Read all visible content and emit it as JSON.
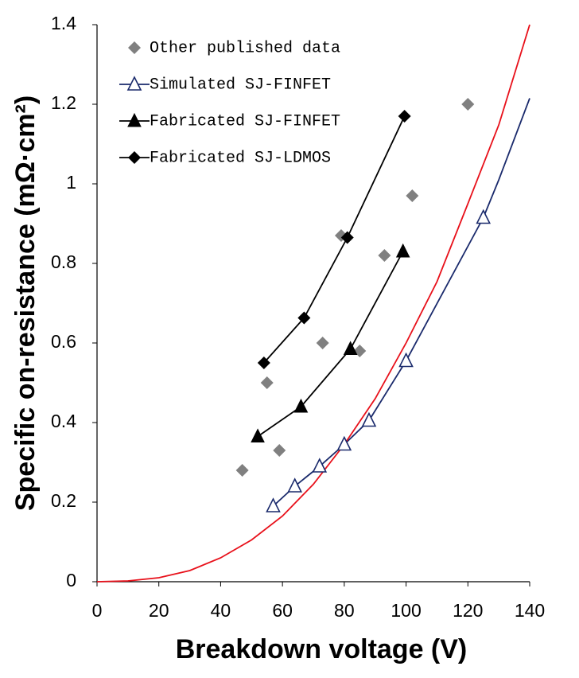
{
  "chart_data": {
    "type": "scatter",
    "x_label": "Breakdown voltage (V)",
    "y_label": "Specific on-resistance (mΩ·cm²)",
    "xlim": [
      0,
      140
    ],
    "xticks": [
      0,
      20,
      40,
      60,
      80,
      100,
      120,
      140
    ],
    "ylim": [
      0,
      1.4
    ],
    "yticks": [
      0,
      0.2,
      0.4,
      0.6,
      0.8,
      1,
      1.2,
      1.4
    ],
    "grid": false,
    "legend_position": "upper-left",
    "series": [
      {
        "name": "Other published data",
        "color": "#808080",
        "marker": "diamond",
        "line": false,
        "x": [
          47,
          55,
          59,
          73,
          79,
          85,
          93,
          102,
          120
        ],
        "values": [
          0.28,
          0.5,
          0.33,
          0.6,
          0.87,
          0.58,
          0.82,
          0.97,
          1.2
        ]
      },
      {
        "name": "Simulated SJ-FINFET",
        "color": "#1a2a6c",
        "marker": "triangle-open",
        "line": true,
        "x": [
          57,
          64,
          72,
          80,
          88,
          100,
          125
        ],
        "values": [
          0.19,
          0.24,
          0.29,
          0.345,
          0.405,
          0.555,
          0.915
        ]
      },
      {
        "name": "Fabricated SJ-FINFET",
        "color": "#000000",
        "marker": "triangle",
        "line": true,
        "x": [
          52,
          66,
          82,
          99
        ],
        "values": [
          0.365,
          0.44,
          0.585,
          0.83
        ]
      },
      {
        "name": "Fabricated SJ-LDMOS",
        "color": "#000000",
        "marker": "diamond",
        "line": true,
        "x": [
          54,
          67,
          81,
          99.5
        ],
        "values": [
          0.55,
          0.663,
          0.865,
          1.17
        ]
      },
      {
        "color": "#1a2a6c",
        "marker": "none",
        "line": true,
        "x": [
          125,
          130,
          140
        ],
        "values": [
          0.915,
          1.01,
          1.215
        ]
      },
      {
        "color": "#e8101a",
        "marker": "none",
        "line": true,
        "x": [
          0,
          10,
          20,
          30,
          40,
          50,
          60,
          70,
          80,
          90,
          100,
          110,
          120,
          130,
          140
        ],
        "values": [
          0,
          0.002,
          0.01,
          0.028,
          0.06,
          0.105,
          0.165,
          0.245,
          0.345,
          0.46,
          0.6,
          0.754,
          0.95,
          1.148,
          1.4
        ]
      }
    ]
  }
}
